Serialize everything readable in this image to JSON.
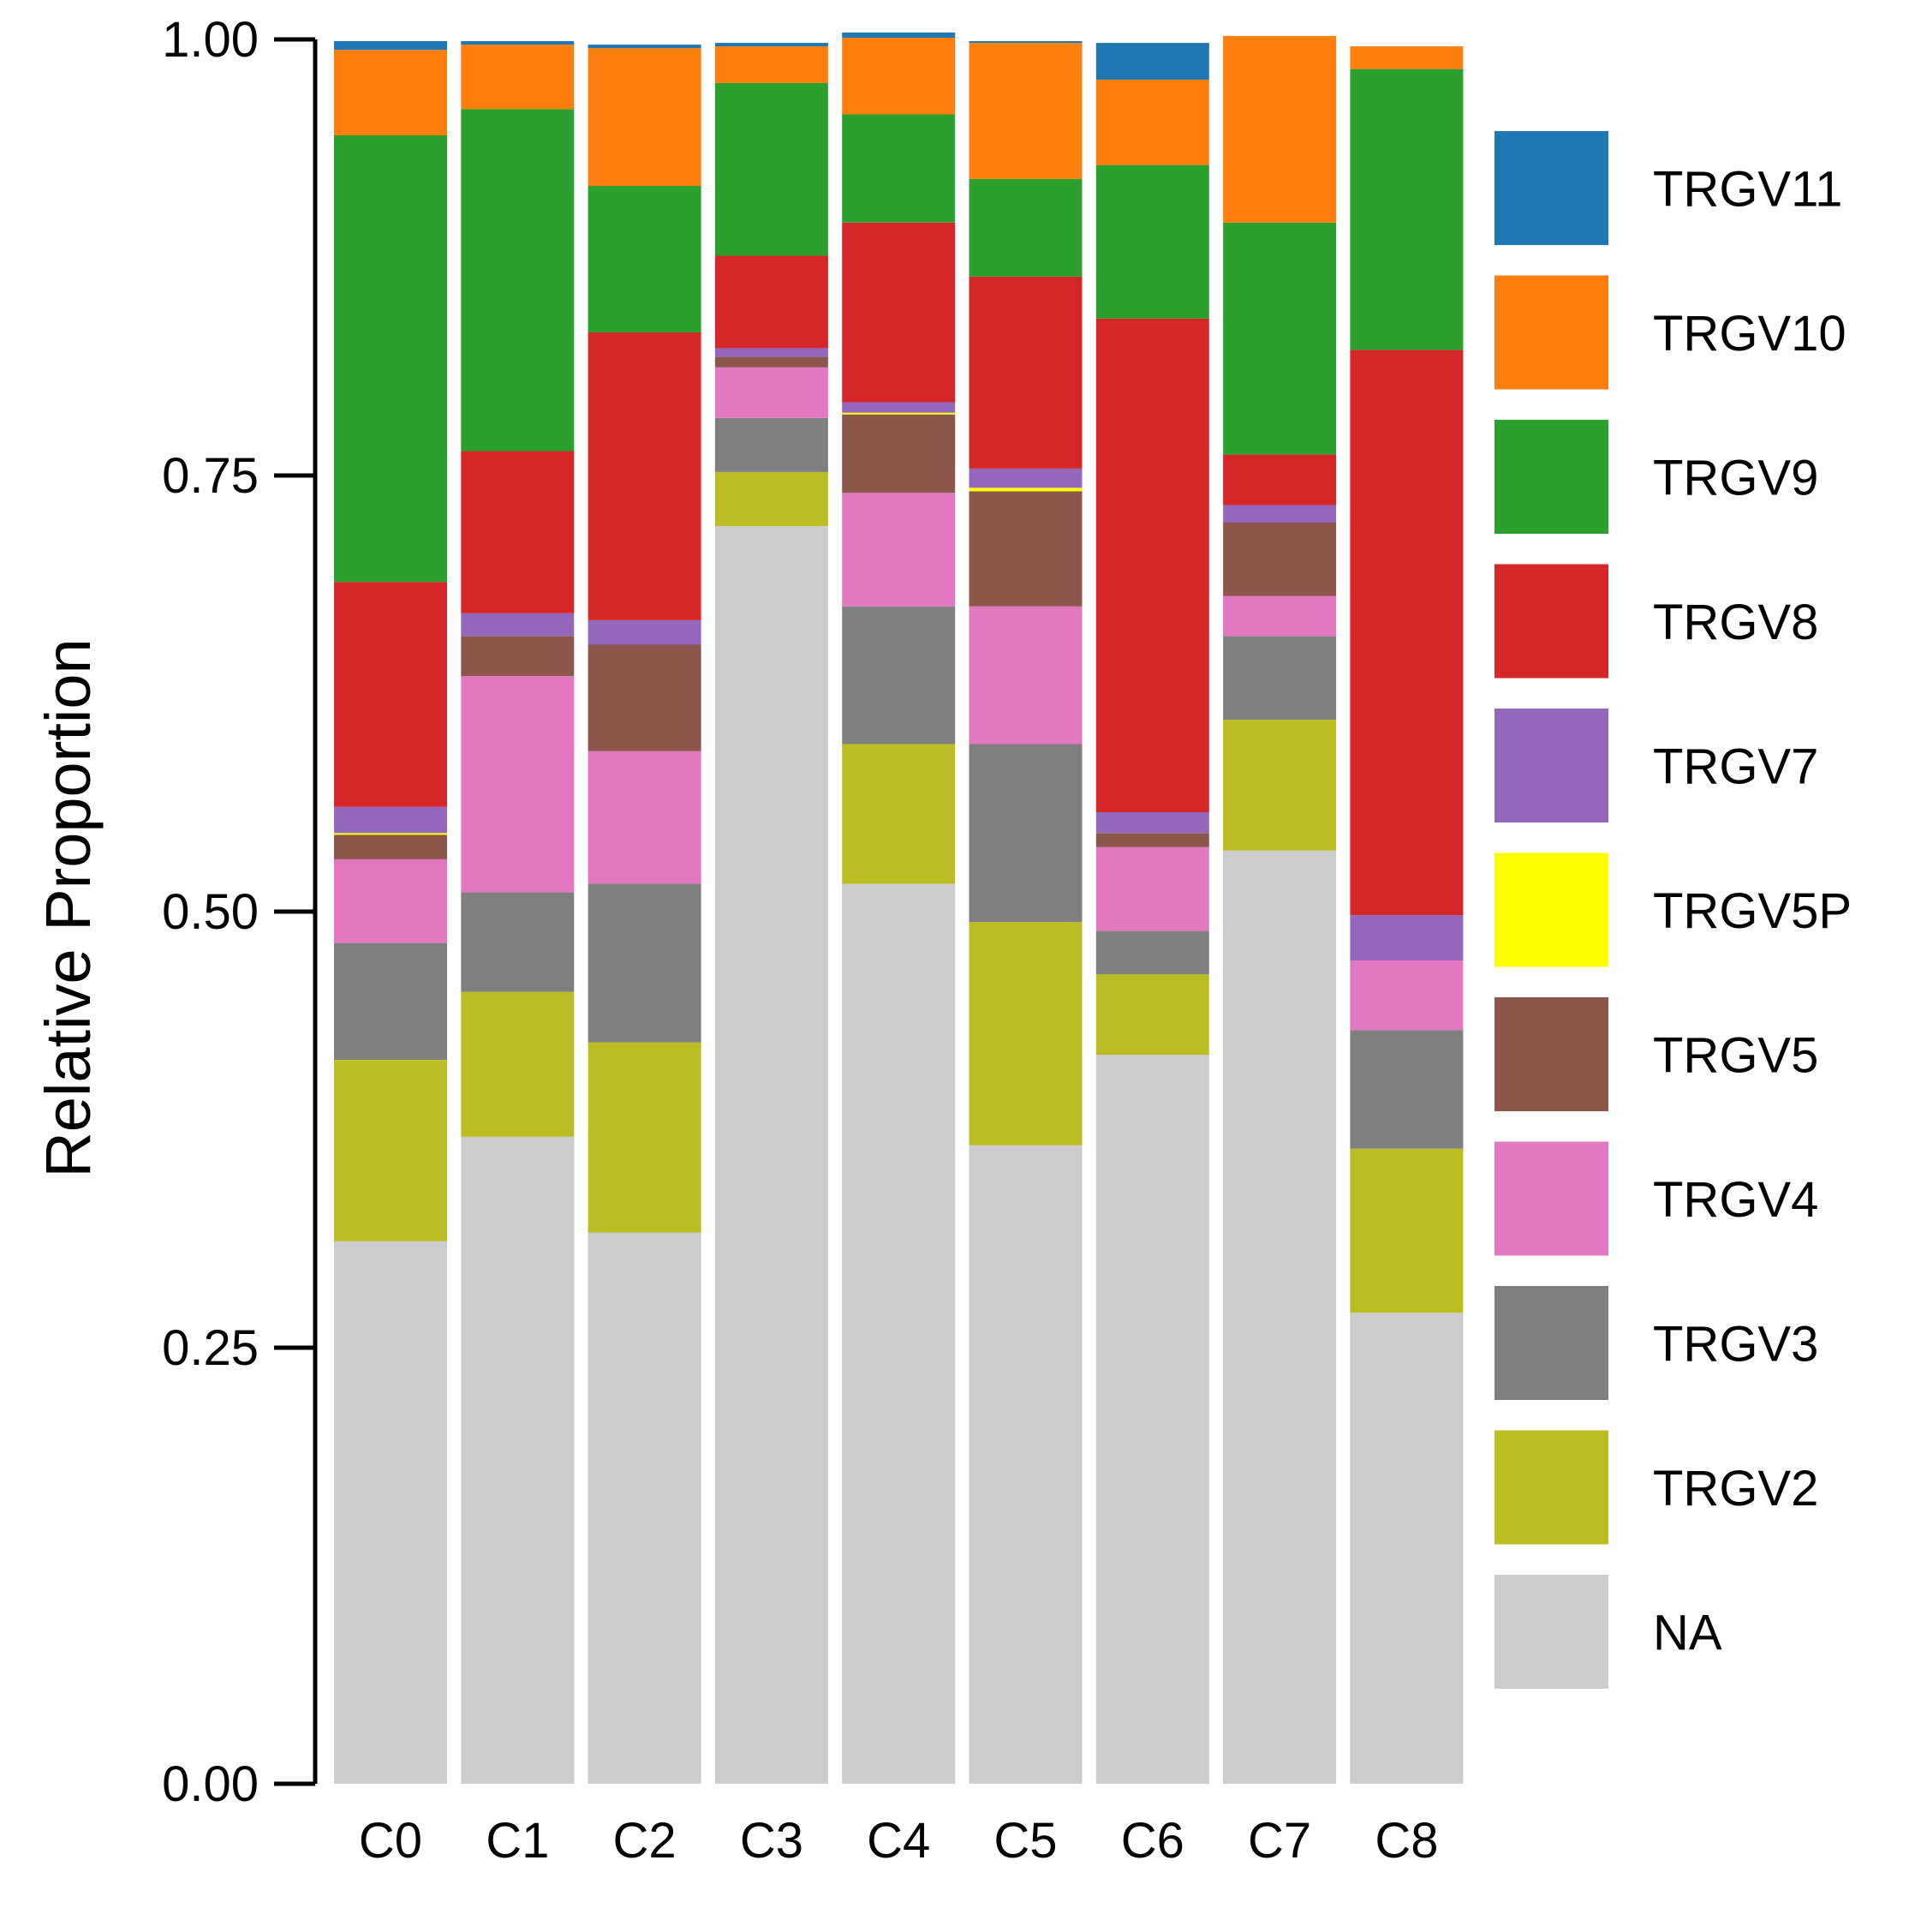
{
  "chart_data": {
    "type": "bar",
    "stacked": true,
    "ylabel": "Relative Proportion",
    "xlabel": "",
    "ylim": [
      0,
      1
    ],
    "yticks": [
      "0.00",
      "0.25",
      "0.50",
      "0.75",
      "1.00"
    ],
    "legend_position": "right",
    "categories": [
      "C0",
      "C1",
      "C2",
      "C3",
      "C4",
      "C5",
      "C6",
      "C7",
      "C8"
    ],
    "series": [
      {
        "name": "NA",
        "color": "#CCCCCC",
        "values": [
          0.311,
          0.371,
          0.316,
          0.721,
          0.516,
          0.366,
          0.418,
          0.535,
          0.27
        ]
      },
      {
        "name": "TRGV2",
        "color": "#BCBD22",
        "values": [
          0.104,
          0.083,
          0.109,
          0.031,
          0.08,
          0.128,
          0.046,
          0.075,
          0.094
        ]
      },
      {
        "name": "TRGV3",
        "color": "#7F7F7F",
        "values": [
          0.067,
          0.057,
          0.091,
          0.031,
          0.079,
          0.102,
          0.025,
          0.048,
          0.068
        ]
      },
      {
        "name": "TRGV4",
        "color": "#E377C2",
        "values": [
          0.048,
          0.124,
          0.076,
          0.029,
          0.065,
          0.079,
          0.048,
          0.023,
          0.04
        ]
      },
      {
        "name": "TRGV5",
        "color": "#8C564B",
        "values": [
          0.014,
          0.023,
          0.061,
          0.006,
          0.045,
          0.066,
          0.008,
          0.042,
          0.0
        ]
      },
      {
        "name": "TRGV5P",
        "color": "#FFFF00",
        "values": [
          0.001,
          0.0,
          0.0,
          0.0,
          0.001,
          0.002,
          0.0,
          0.0,
          0.0
        ]
      },
      {
        "name": "TRGV7",
        "color": "#9467BD",
        "values": [
          0.015,
          0.013,
          0.014,
          0.005,
          0.006,
          0.011,
          0.012,
          0.01,
          0.026
        ]
      },
      {
        "name": "TRGV8",
        "color": "#D62728",
        "values": [
          0.129,
          0.093,
          0.165,
          0.053,
          0.103,
          0.11,
          0.283,
          0.029,
          0.324
        ]
      },
      {
        "name": "TRGV9",
        "color": "#2CA02C",
        "values": [
          0.256,
          0.196,
          0.084,
          0.099,
          0.062,
          0.056,
          0.088,
          0.133,
          0.161
        ]
      },
      {
        "name": "TRGV10",
        "color": "#FF7F0E",
        "values": [
          0.049,
          0.037,
          0.079,
          0.021,
          0.044,
          0.078,
          0.049,
          0.107,
          0.013
        ]
      },
      {
        "name": "TRGV11",
        "color": "#1F77B4",
        "values": [
          0.005,
          0.002,
          0.002,
          0.002,
          0.003,
          0.001,
          0.021,
          0.0,
          0.0
        ]
      }
    ]
  }
}
